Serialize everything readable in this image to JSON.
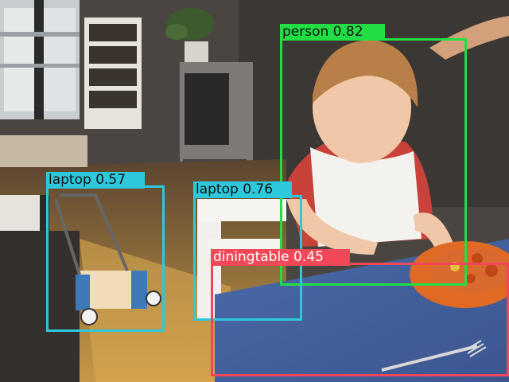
{
  "detections": [
    {
      "label": "person 0.82",
      "class": "person",
      "score": 0.82,
      "color": "#22dd44"
    },
    {
      "label": "laptop 0.57",
      "class": "laptop",
      "score": 0.57,
      "color": "#2ec8dc"
    },
    {
      "label": "laptop 0.76",
      "class": "laptop",
      "score": 0.76,
      "color": "#2ec8dc"
    },
    {
      "label": "diningtable 0.45",
      "class": "diningtable",
      "score": 0.45,
      "color": "#f04858"
    }
  ]
}
